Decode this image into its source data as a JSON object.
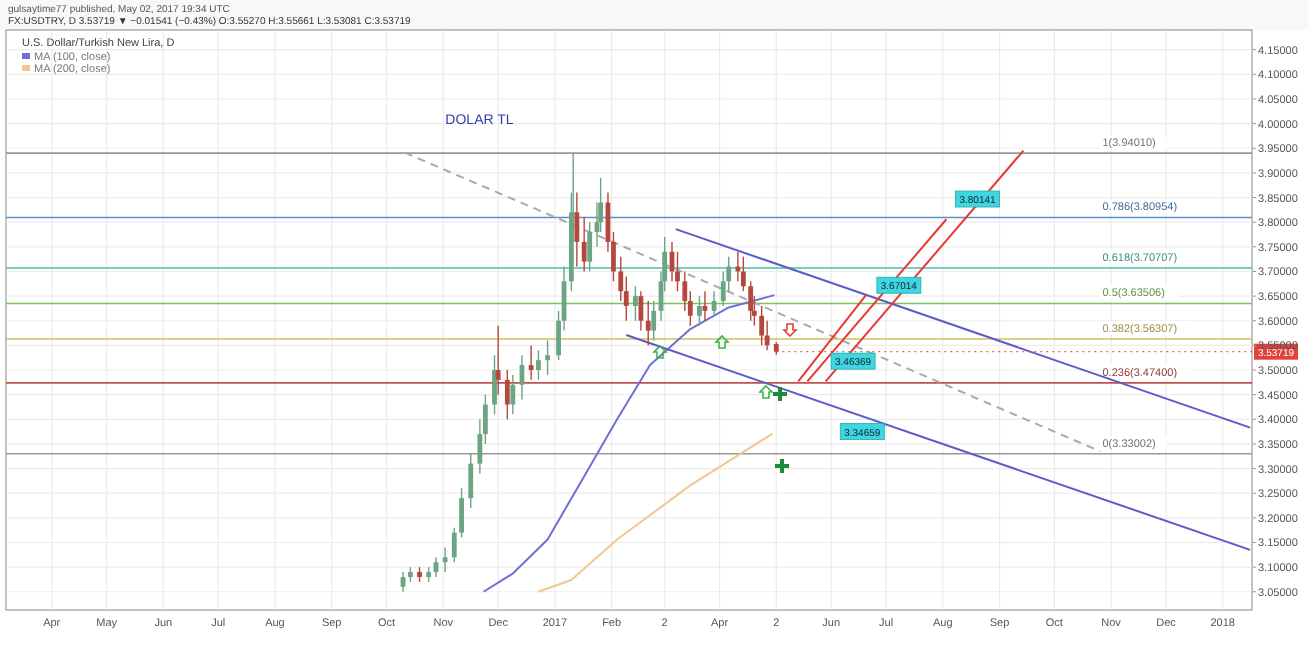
{
  "chart_data": {
    "type": "candlestick",
    "title": "DOLAR TL",
    "subtitle": "U.S. Dollar/Turkish New Lira, D",
    "annotations": [
      "gulsaytime77 published, May 02, 2017 19:34 UTC",
      "FX:USDTRY, D 3.53719 ▼ −0.01541 (−0.43%) O:3.55270 H:3.55661 L:3.53081 C:3.53719",
      {
        "text": "3.80141",
        "x": "2017-08-20",
        "y": 3.847
      },
      {
        "text": "3.67014",
        "x": "2017-07-08",
        "y": 3.672
      },
      {
        "text": "3.46369",
        "x": "2017-06-13",
        "y": 3.518
      },
      {
        "text": "3.34659",
        "x": "2017-06-18",
        "y": 3.375
      },
      {
        "text": "3.53719",
        "x": "2017-05-02",
        "y": 3.53719
      }
    ],
    "x": [
      "2016-10-10",
      "2016-10-14",
      "2016-10-19",
      "2016-10-24",
      "2016-10-28",
      "2016-11-02",
      "2016-11-07",
      "2016-11-11",
      "2016-11-16",
      "2016-11-21",
      "2016-11-24",
      "2016-11-29",
      "2016-12-01",
      "2016-12-06",
      "2016-12-09",
      "2016-12-14",
      "2016-12-19",
      "2016-12-23",
      "2016-12-28",
      "2017-01-03",
      "2017-01-06",
      "2017-01-10",
      "2017-01-11",
      "2017-01-13",
      "2017-01-17",
      "2017-01-20",
      "2017-01-24",
      "2017-01-26",
      "2017-01-30",
      "2017-02-02",
      "2017-02-06",
      "2017-02-09",
      "2017-02-14",
      "2017-02-17",
      "2017-02-21",
      "2017-02-24",
      "2017-02-28",
      "2017-03-02",
      "2017-03-06",
      "2017-03-09",
      "2017-03-13",
      "2017-03-16",
      "2017-03-21",
      "2017-03-24",
      "2017-03-29",
      "2017-04-03",
      "2017-04-06",
      "2017-04-11",
      "2017-04-14",
      "2017-04-18",
      "2017-04-20",
      "2017-04-24",
      "2017-04-27",
      "2017-05-02"
    ],
    "ohlc": [
      [
        3.06,
        3.09,
        3.05,
        3.08
      ],
      [
        3.08,
        3.1,
        3.07,
        3.09
      ],
      [
        3.09,
        3.1,
        3.07,
        3.08
      ],
      [
        3.08,
        3.1,
        3.07,
        3.09
      ],
      [
        3.09,
        3.12,
        3.08,
        3.11
      ],
      [
        3.11,
        3.14,
        3.09,
        3.12
      ],
      [
        3.12,
        3.18,
        3.11,
        3.17
      ],
      [
        3.17,
        3.26,
        3.16,
        3.24
      ],
      [
        3.24,
        3.33,
        3.22,
        3.31
      ],
      [
        3.31,
        3.4,
        3.29,
        3.37
      ],
      [
        3.37,
        3.45,
        3.35,
        3.43
      ],
      [
        3.43,
        3.53,
        3.41,
        3.5
      ],
      [
        3.5,
        3.59,
        3.45,
        3.48
      ],
      [
        3.48,
        3.5,
        3.4,
        3.43
      ],
      [
        3.43,
        3.49,
        3.41,
        3.47
      ],
      [
        3.47,
        3.53,
        3.44,
        3.51
      ],
      [
        3.51,
        3.55,
        3.48,
        3.5
      ],
      [
        3.5,
        3.54,
        3.48,
        3.52
      ],
      [
        3.52,
        3.56,
        3.49,
        3.53
      ],
      [
        3.53,
        3.62,
        3.52,
        3.6
      ],
      [
        3.6,
        3.71,
        3.58,
        3.68
      ],
      [
        3.68,
        3.86,
        3.66,
        3.82
      ],
      [
        3.82,
        3.94,
        3.76,
        3.82
      ],
      [
        3.82,
        3.86,
        3.71,
        3.76
      ],
      [
        3.76,
        3.81,
        3.7,
        3.72
      ],
      [
        3.72,
        3.8,
        3.7,
        3.78
      ],
      [
        3.78,
        3.84,
        3.75,
        3.8
      ],
      [
        3.8,
        3.89,
        3.78,
        3.84
      ],
      [
        3.84,
        3.86,
        3.74,
        3.76
      ],
      [
        3.76,
        3.78,
        3.68,
        3.7
      ],
      [
        3.7,
        3.73,
        3.64,
        3.66
      ],
      [
        3.66,
        3.69,
        3.6,
        3.63
      ],
      [
        3.63,
        3.67,
        3.6,
        3.65
      ],
      [
        3.65,
        3.66,
        3.58,
        3.6
      ],
      [
        3.6,
        3.64,
        3.55,
        3.58
      ],
      [
        3.58,
        3.64,
        3.56,
        3.62
      ],
      [
        3.62,
        3.7,
        3.6,
        3.68
      ],
      [
        3.68,
        3.77,
        3.66,
        3.74
      ],
      [
        3.74,
        3.76,
        3.68,
        3.7
      ],
      [
        3.7,
        3.74,
        3.66,
        3.68
      ],
      [
        3.68,
        3.7,
        3.62,
        3.64
      ],
      [
        3.64,
        3.66,
        3.59,
        3.61
      ],
      [
        3.61,
        3.65,
        3.59,
        3.63
      ],
      [
        3.63,
        3.66,
        3.6,
        3.62
      ],
      [
        3.62,
        3.66,
        3.61,
        3.64
      ],
      [
        3.64,
        3.7,
        3.63,
        3.68
      ],
      [
        3.68,
        3.73,
        3.66,
        3.71
      ],
      [
        3.71,
        3.74,
        3.68,
        3.7
      ],
      [
        3.7,
        3.73,
        3.66,
        3.67
      ],
      [
        3.67,
        3.68,
        3.6,
        3.62
      ],
      [
        3.62,
        3.65,
        3.59,
        3.61
      ],
      [
        3.61,
        3.63,
        3.55,
        3.57
      ],
      [
        3.57,
        3.6,
        3.54,
        3.55
      ],
      [
        3.5527,
        3.55661,
        3.53081,
        3.53719
      ]
    ],
    "series": [
      {
        "name": "MA (100, close)",
        "type": "line",
        "color": "#6f6fd8",
        "x": [
          "2016-11-23",
          "2016-12-09",
          "2016-12-28",
          "2017-01-21",
          "2017-02-04",
          "2017-02-22",
          "2017-03-16",
          "2017-04-06",
          "2017-05-01"
        ],
        "values": [
          3.05,
          3.087,
          3.156,
          3.31,
          3.4,
          3.51,
          3.583,
          3.627,
          3.652
        ]
      },
      {
        "name": "MA (200, close)",
        "type": "line",
        "color": "#f0c890",
        "x": [
          "2016-12-23",
          "2017-01-10",
          "2017-02-04",
          "2017-03-16",
          "2017-04-30"
        ],
        "values": [
          3.05,
          3.074,
          3.156,
          3.266,
          3.371
        ]
      },
      {
        "type": "line",
        "color": "#5c5cc8",
        "x": [
          "2017-03-08",
          "2018-01-16"
        ],
        "values": [
          3.786,
          3.383
        ]
      },
      {
        "type": "line",
        "color": "#5c5cc8",
        "x": [
          "2017-02-09",
          "2018-01-16"
        ],
        "values": [
          3.571,
          3.135
        ]
      },
      {
        "type": "line",
        "color": "#aaaaaa",
        "line_style": "dashed",
        "x": [
          "2016-10-11",
          "2017-10-26"
        ],
        "values": [
          3.941,
          3.335
        ]
      },
      {
        "type": "line",
        "color": "#e53935",
        "x": [
          "2017-05-14",
          "2017-06-20"
        ],
        "values": [
          3.477,
          3.652
        ]
      },
      {
        "type": "line",
        "color": "#e53935",
        "x": [
          "2017-05-19",
          "2017-08-03"
        ],
        "values": [
          3.477,
          3.806
        ]
      },
      {
        "type": "line",
        "color": "#e53935",
        "x": [
          "2017-05-29",
          "2017-09-14"
        ],
        "values": [
          3.477,
          3.945
        ]
      }
    ],
    "ref_lines": [
      {
        "axis": "y",
        "value": 3.9401,
        "label": "1(3.94010)",
        "color": "#999999"
      },
      {
        "axis": "y",
        "value": 3.80954,
        "label": "0.786(3.80954)",
        "color": "#5b8fd0"
      },
      {
        "axis": "y",
        "value": 3.70707,
        "label": "0.618(3.70707)",
        "color": "#4dbfa8"
      },
      {
        "axis": "y",
        "value": 3.63506,
        "label": "0.5(3.63506)",
        "color": "#7cc35a"
      },
      {
        "axis": "y",
        "value": 3.56307,
        "label": "0.382(3.56307)",
        "color": "#d2c05a"
      },
      {
        "axis": "y",
        "value": 3.474,
        "label": "0.236(3.47400)",
        "color": "#c0504d"
      },
      {
        "axis": "y",
        "value": 3.33002,
        "label": "0(3.33002)",
        "color": "#999999"
      }
    ],
    "xlim": [
      "2016-03-07",
      "2018-01-17"
    ],
    "ylim": [
      3.013,
      4.19
    ],
    "xticks": [
      {
        "value": "2016-04-01",
        "label": "Apr"
      },
      {
        "value": "2016-05-01",
        "label": "May"
      },
      {
        "value": "2016-06-01",
        "label": "Jun"
      },
      {
        "value": "2016-07-01",
        "label": "Jul"
      },
      {
        "value": "2016-08-01",
        "label": "Aug"
      },
      {
        "value": "2016-09-01",
        "label": "Sep"
      },
      {
        "value": "2016-10-01",
        "label": "Oct"
      },
      {
        "value": "2016-11-01",
        "label": "Nov"
      },
      {
        "value": "2016-12-01",
        "label": "Dec"
      },
      {
        "value": "2017-01-01",
        "label": "2017"
      },
      {
        "value": "2017-02-01",
        "label": "Feb"
      },
      {
        "value": "2017-03-02",
        "label": "2"
      },
      {
        "value": "2017-04-01",
        "label": "Apr"
      },
      {
        "value": "2017-05-02",
        "label": "2"
      },
      {
        "value": "2017-06-01",
        "label": "Jun"
      },
      {
        "value": "2017-07-01",
        "label": "Jul"
      },
      {
        "value": "2017-08-01",
        "label": "Aug"
      },
      {
        "value": "2017-09-01",
        "label": "Sep"
      },
      {
        "value": "2017-10-01",
        "label": "Oct"
      },
      {
        "value": "2017-11-01",
        "label": "Nov"
      },
      {
        "value": "2017-12-01",
        "label": "Dec"
      },
      {
        "value": "2018-01-01",
        "label": "2018"
      }
    ],
    "yticks": [
      {
        "value": 4.15,
        "label": "4.15000"
      },
      {
        "value": 4.1,
        "label": "4.10000"
      },
      {
        "value": 4.05,
        "label": "4.05000"
      },
      {
        "value": 4.0,
        "label": "4.00000"
      },
      {
        "value": 3.95,
        "label": "3.95000"
      },
      {
        "value": 3.9,
        "label": "3.90000"
      },
      {
        "value": 3.85,
        "label": "3.85000"
      },
      {
        "value": 3.8,
        "label": "3.80000"
      },
      {
        "value": 3.75,
        "label": "3.75000"
      },
      {
        "value": 3.7,
        "label": "3.70000"
      },
      {
        "value": 3.65,
        "label": "3.65000"
      },
      {
        "value": 3.6,
        "label": "3.60000"
      },
      {
        "value": 3.55,
        "label": "3.55000"
      },
      {
        "value": 3.5,
        "label": "3.50000"
      },
      {
        "value": 3.45,
        "label": "3.45000"
      },
      {
        "value": 3.4,
        "label": "3.40000"
      },
      {
        "value": 3.35,
        "label": "3.35000"
      },
      {
        "value": 3.3,
        "label": "3.30000"
      },
      {
        "value": 3.25,
        "label": "3.25000"
      },
      {
        "value": 3.2,
        "label": "3.20000"
      },
      {
        "value": 3.15,
        "label": "3.15000"
      },
      {
        "value": 3.1,
        "label": "3.10000"
      },
      {
        "value": 3.05,
        "label": "3.05000"
      }
    ],
    "grid": true,
    "legend": "top left"
  }
}
